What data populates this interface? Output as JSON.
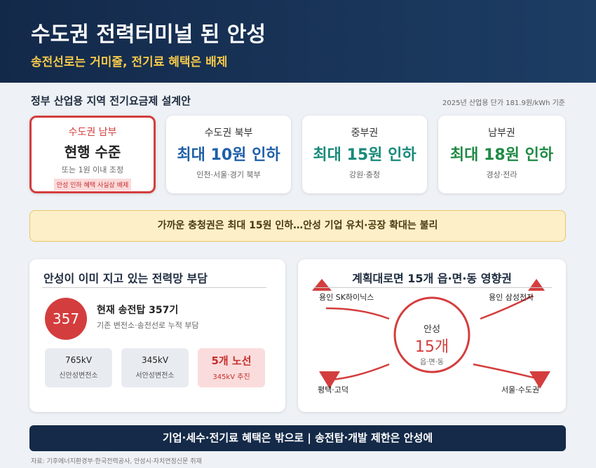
{
  "header": {
    "title": "수도권 전력터미널 된 안성",
    "subtitle": "송전선로는 거미줄, 전기료 혜택은 배제"
  },
  "plan": {
    "title": "정부 산업용 지역 전기요금제 설계안",
    "note": "2025년 산업용 단가 181.9원/kWh 기준",
    "cards": [
      {
        "region": "수도권 남부",
        "headline": "현행 수준",
        "detail": "또는 1원 이내 조정",
        "tag": "안성 인하 혜택 사실상 배제"
      },
      {
        "region": "수도권 북부",
        "headline": "최대 10원 인하",
        "detail": "인천·서울·경기 북부"
      },
      {
        "region": "중부권",
        "headline": "최대 15원 인하",
        "detail": "강원·충청"
      },
      {
        "region": "남부권",
        "headline": "최대 18원 인하",
        "detail": "경상·전라"
      }
    ]
  },
  "banner": "가까운 충청권은 최대 15원 인하…안성 기업 유치·공장 확대는 불리",
  "burden": {
    "title": "안성이 이미 지고 있는 전력망 부담",
    "badge": "357",
    "headline": "현재 송전탑 357기",
    "detail": "기존 변전소·송전선로 누적 부담",
    "boxes": [
      {
        "top": "765kV",
        "bottom": "신안성변전소"
      },
      {
        "top": "345kV",
        "bottom": "서안성변전소"
      },
      {
        "top": "5개 노선",
        "bottom": "345kV 추진"
      }
    ]
  },
  "impact": {
    "title": "계획대로면 15개 읍·면·동 영향권",
    "center": {
      "top": "안성",
      "main": "15개",
      "bottom": "읍·면·동"
    },
    "places": [
      "용인 SK하이닉스",
      "용인 삼성전자",
      "평택·고덕",
      "서울·수도권"
    ]
  },
  "footer": "기업·세수·전기료 혜택은 밖으로 | 송전탑·개발 제한은 안성에",
  "source": "자료: 기후에너지환경부·한국전력공사, 안성시·자치연정신문 취재"
}
